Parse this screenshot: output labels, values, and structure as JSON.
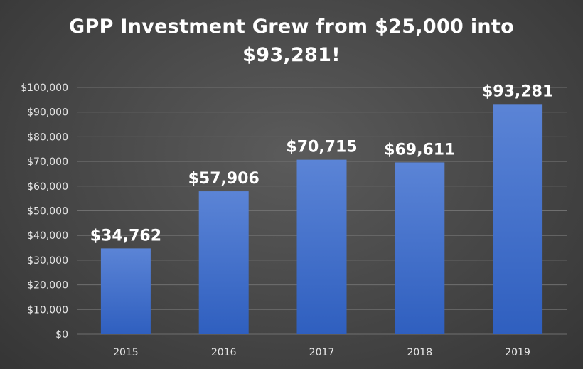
{
  "chart_data": {
    "type": "bar",
    "title": "GPP Investment Grew from $25,000 into $93,281!",
    "xlabel": "",
    "ylabel": "",
    "categories": [
      "2015",
      "2016",
      "2017",
      "2018",
      "2019"
    ],
    "values": [
      34762,
      57906,
      70715,
      69611,
      93281
    ],
    "data_labels": [
      "$34,762",
      "$57,906",
      "$70,715",
      "$69,611",
      "$93,281"
    ],
    "y_tick_labels": [
      "$0",
      "$10,000",
      "$20,000",
      "$30,000",
      "$40,000",
      "$50,000",
      "$60,000",
      "$70,000",
      "$80,000",
      "$90,000",
      "$100,000"
    ],
    "ylim": [
      0,
      100000
    ],
    "y_tick_step": 10000,
    "grid": true,
    "legend": "none",
    "colors": {
      "bar_top": "#5b84d6",
      "bar_bottom": "#2f5fbf",
      "gridline": "#6f6f6f",
      "axis_text": "#e6e6e6",
      "title_text": "#ffffff"
    }
  }
}
